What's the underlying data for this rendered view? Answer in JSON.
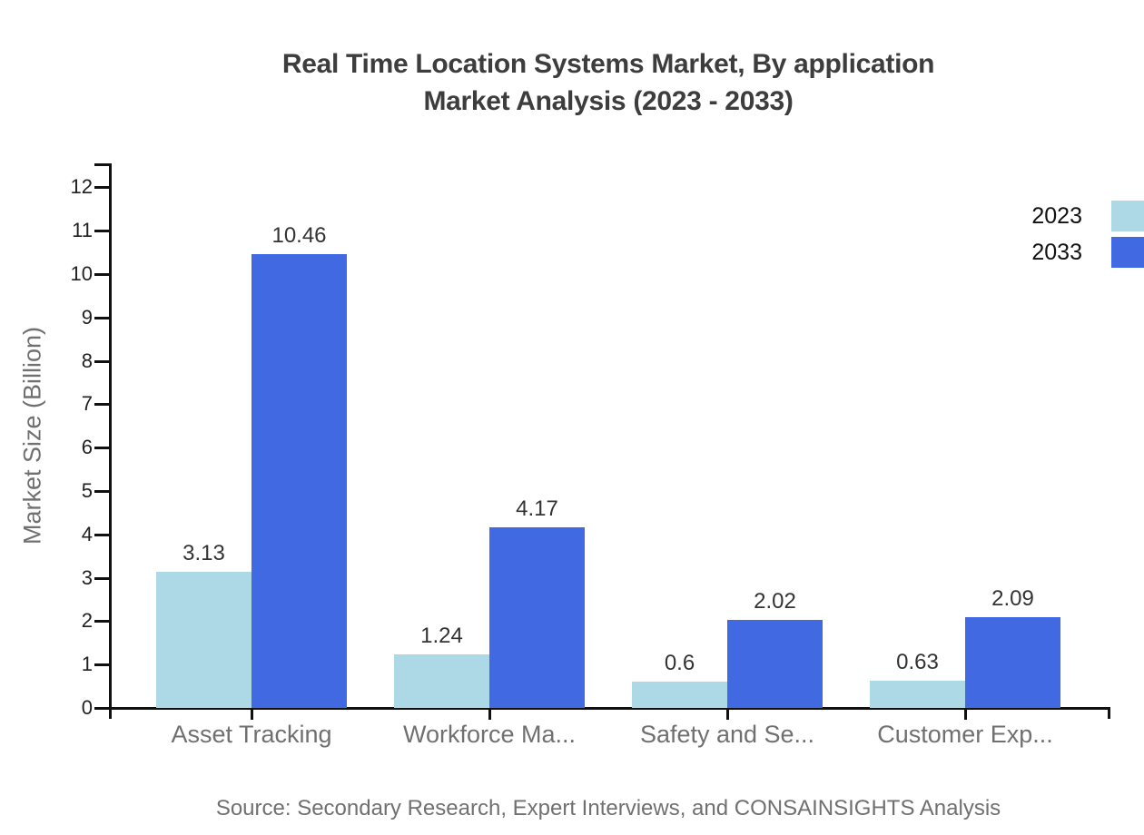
{
  "title": {
    "line1": "Real Time Location Systems Market, By application",
    "line2": "Market Analysis (2023 - 2033)"
  },
  "source": "Source: Secondary Research, Expert Interviews, and CONSAINSIGHTS Analysis",
  "chart_data": {
    "type": "bar",
    "title": "Real Time Location Systems Market, By application Market Analysis (2023 - 2033)",
    "categories": [
      "Asset Tracking",
      "Workforce Ma...",
      "Safety and Se...",
      "Customer Exp..."
    ],
    "series": [
      {
        "name": "2023",
        "color": "#ADD8E6",
        "values": [
          3.13,
          1.24,
          0.6,
          0.63
        ]
      },
      {
        "name": "2033",
        "color": "#4169E1",
        "values": [
          10.46,
          4.17,
          2.02,
          2.09
        ]
      }
    ],
    "xlabel": "",
    "ylabel": "Market Size (Billion)",
    "ylim": [
      0,
      12.55
    ],
    "yticks": [
      0,
      1,
      2,
      3,
      4,
      5,
      6,
      7,
      8,
      9,
      10,
      11,
      12
    ],
    "grid": false,
    "legend_position": "top-right",
    "value_labels": true
  },
  "colors": {
    "axis": "#111111",
    "title_text": "#3d3d3d",
    "muted_text": "#707070",
    "tick_text": "#1f1f1f",
    "value_text": "#333333",
    "series_2023": "#ADD8E6",
    "series_2033": "#4169E1"
  }
}
